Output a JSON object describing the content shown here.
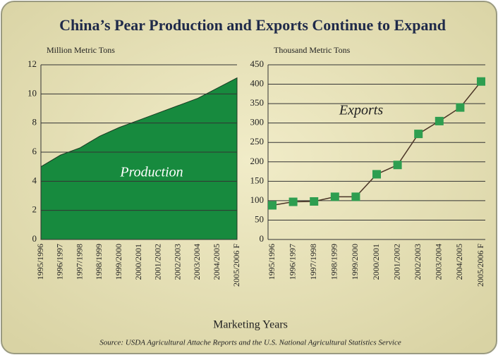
{
  "title": "China’s Pear Production and Exports Continue to Expand",
  "chart_data": [
    {
      "type": "area",
      "ylabel": "Million Metric Tons",
      "annotation": "Production",
      "categories": [
        "1995/1996",
        "1996/1997",
        "1997/1998",
        "1998/1999",
        "1999/2000",
        "2000/2001",
        "2001/2002",
        "2002/2003",
        "2003/2004",
        "2004/2005",
        "2005/2006 F"
      ],
      "series": [
        {
          "name": "Production",
          "color": "#178a3e",
          "values": [
            5.0,
            5.8,
            6.3,
            7.1,
            7.7,
            8.2,
            8.7,
            9.2,
            9.7,
            10.4,
            11.1
          ]
        }
      ],
      "ylim": [
        0,
        12
      ],
      "yticks": [
        0,
        2,
        4,
        6,
        8,
        10,
        12
      ],
      "grid": true
    },
    {
      "type": "line",
      "ylabel": "Thousand Metric Tons",
      "annotation": "Exports",
      "categories": [
        "1995/1996",
        "1996/1997",
        "1997/1998",
        "1998/1999",
        "1999/2000",
        "2000/2001",
        "2001/2002",
        "2002/2003",
        "2003/2004",
        "2004/2005",
        "2005/2006 F"
      ],
      "series": [
        {
          "name": "Exports",
          "color": "#2e9e50",
          "values": [
            88,
            97,
            98,
            110,
            110,
            168,
            192,
            272,
            305,
            340,
            407
          ]
        }
      ],
      "ylim": [
        0,
        450
      ],
      "yticks": [
        0,
        50,
        100,
        150,
        200,
        250,
        300,
        350,
        400,
        450
      ],
      "grid": true
    }
  ],
  "xlabel": "Marketing Years",
  "source": "Source: USDA Agricultural Attache Reports and the U.S. National Agricultural Statistics Service"
}
